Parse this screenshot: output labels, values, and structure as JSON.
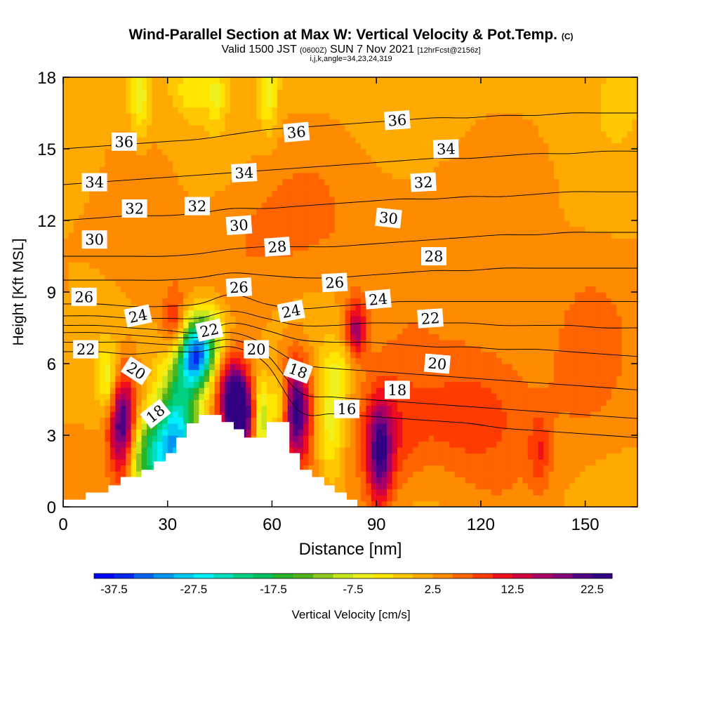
{
  "header": {
    "title_main": "Wind-Parallel Section at Max W: Vertical Velocity & Pot.Temp.",
    "title_mark": "(C)",
    "subtitle_a": "Valid 1500 JST",
    "subtitle_b": "(0600Z)",
    "subtitle_c": "SUN 7 Nov 2021",
    "subtitle_d": "[12hrFcst@2156z]",
    "subtitle_line3": "i,j,k,angle=34,23,24,319"
  },
  "chart_data": {
    "type": "heatmap",
    "xlabel": "Distance [nm]",
    "ylabel": "Height [Kft MSL]",
    "xlim": [
      0,
      165
    ],
    "ylim": [
      0,
      18
    ],
    "x_ticks": [
      0,
      30,
      60,
      90,
      120,
      150
    ],
    "y_ticks": [
      0,
      3,
      6,
      9,
      12,
      15,
      18
    ],
    "colorbar": {
      "label": "Vertical Velocity [cm/s]",
      "min": -40,
      "max": 25,
      "step": 2.5,
      "tick_labels": [
        "-37.5",
        "-27.5",
        "-17.5",
        "-7.5",
        "2.5",
        "12.5",
        "22.5"
      ],
      "colors": [
        "#0000ff",
        "#0028f0",
        "#0064f0",
        "#0096f0",
        "#00c8f5",
        "#00f0ff",
        "#00e0c0",
        "#00d080",
        "#00c060",
        "#28b428",
        "#50b41e",
        "#8cc81e",
        "#c8e61e",
        "#f0f01e",
        "#ffe600",
        "#ffc800",
        "#ffaa00",
        "#ff8c00",
        "#ff6400",
        "#ff3c00",
        "#f00f1e",
        "#d2003c",
        "#aa0064",
        "#820078",
        "#500082",
        "#320082"
      ]
    },
    "w_features": [
      {
        "x": 17,
        "y": 3.3,
        "w": 24,
        "rx": 4,
        "ry": 2.2
      },
      {
        "x": 26,
        "y": 2.1,
        "w": -22,
        "rx": 9,
        "ry": 1.7
      },
      {
        "x": 38,
        "y": 6.2,
        "w": -30,
        "rx": 5,
        "ry": 1.3
      },
      {
        "x": 33,
        "y": 3.6,
        "w": -24,
        "rx": 6,
        "ry": 2.5
      },
      {
        "x": 41,
        "y": 7.3,
        "w": -15,
        "rx": 6,
        "ry": 1.3
      },
      {
        "x": 13,
        "y": 5.3,
        "w": -10,
        "rx": 3,
        "ry": 1.5
      },
      {
        "x": 32,
        "y": 7.5,
        "w": 9,
        "rx": 3,
        "ry": 1.4
      },
      {
        "x": 48,
        "y": 4.6,
        "w": 15,
        "rx": 4,
        "ry": 1.9
      },
      {
        "x": 51,
        "y": 3.9,
        "w": 24,
        "rx": 3.5,
        "ry": 1.6
      },
      {
        "x": 57,
        "y": 3.6,
        "w": -12,
        "rx": 2,
        "ry": 1.8
      },
      {
        "x": 62,
        "y": 4.3,
        "w": -9,
        "rx": 3,
        "ry": 1.2
      },
      {
        "x": 67,
        "y": 4.1,
        "w": 22,
        "rx": 4,
        "ry": 2.1
      },
      {
        "x": 77,
        "y": 3.5,
        "w": -9,
        "rx": 4,
        "ry": 2.6
      },
      {
        "x": 80,
        "y": 5.8,
        "w": -5,
        "rx": 4,
        "ry": 1.2
      },
      {
        "x": 84,
        "y": 7.4,
        "w": 14,
        "rx": 3,
        "ry": 1.2
      },
      {
        "x": 91,
        "y": 2.2,
        "w": 16,
        "rx": 3.5,
        "ry": 2.2
      },
      {
        "x": 93,
        "y": 2.8,
        "w": 6,
        "rx": 9,
        "ry": 2.6
      },
      {
        "x": 112,
        "y": 3.6,
        "w": 5,
        "rx": 20,
        "ry": 2.4
      },
      {
        "x": 123,
        "y": 5.5,
        "w": 3,
        "rx": 14,
        "ry": 3.5
      },
      {
        "x": 60,
        "y": 11.5,
        "w": 3,
        "rx": 22,
        "ry": 2.6
      },
      {
        "x": 100,
        "y": 11.5,
        "w": 2,
        "rx": 20,
        "ry": 3.5
      },
      {
        "x": 22,
        "y": 11,
        "w": 1.5,
        "rx": 14,
        "ry": 3.5
      },
      {
        "x": 137,
        "y": 2.3,
        "w": 6,
        "rx": 3,
        "ry": 1.5
      },
      {
        "x": 150,
        "y": 6,
        "w": 3,
        "rx": 12,
        "ry": 4
      },
      {
        "x": 22,
        "y": 17.1,
        "w": -8,
        "rx": 3,
        "ry": 1.6
      },
      {
        "x": 37,
        "y": 17.5,
        "w": -6,
        "rx": 5,
        "ry": 1.0
      },
      {
        "x": 44,
        "y": 17.3,
        "w": -6,
        "rx": 2.5,
        "ry": 1.3
      },
      {
        "x": 59,
        "y": 17.3,
        "w": -8,
        "rx": 2.5,
        "ry": 1.6
      },
      {
        "x": 8,
        "y": 15,
        "w": -2,
        "rx": 8,
        "ry": 3
      },
      {
        "x": 160,
        "y": 17,
        "w": -3,
        "rx": 5,
        "ry": 1.5
      }
    ],
    "terrain": [
      [
        0,
        0.3
      ],
      [
        6.5,
        0.3
      ],
      [
        6.5,
        0.6
      ],
      [
        13,
        0.6
      ],
      [
        13,
        0.9
      ],
      [
        16.5,
        0.9
      ],
      [
        16.5,
        1.25
      ],
      [
        22.5,
        1.25
      ],
      [
        22.5,
        1.55
      ],
      [
        26,
        1.55
      ],
      [
        26,
        1.9
      ],
      [
        29.5,
        1.9
      ],
      [
        29.5,
        2.25
      ],
      [
        32.5,
        2.25
      ],
      [
        32.5,
        2.9
      ],
      [
        35.5,
        2.9
      ],
      [
        35.5,
        3.5
      ],
      [
        39,
        3.5
      ],
      [
        39,
        3.85
      ],
      [
        45.5,
        3.85
      ],
      [
        45.5,
        3.55
      ],
      [
        49,
        3.55
      ],
      [
        49,
        3.25
      ],
      [
        52,
        3.25
      ],
      [
        52,
        2.9
      ],
      [
        58.5,
        2.9
      ],
      [
        58.5,
        3.55
      ],
      [
        65,
        3.55
      ],
      [
        65,
        2.25
      ],
      [
        68,
        2.25
      ],
      [
        68,
        1.55
      ],
      [
        71.5,
        1.55
      ],
      [
        71.5,
        1.25
      ],
      [
        75,
        1.25
      ],
      [
        75,
        0.9
      ],
      [
        78,
        0.9
      ],
      [
        78,
        0.6
      ],
      [
        81.5,
        0.6
      ],
      [
        81.5,
        0.3
      ],
      [
        84.5,
        0.3
      ],
      [
        84.5,
        0
      ],
      [
        0,
        0
      ]
    ],
    "theta_contours": [
      {
        "level": 16,
        "values": [
          6.5,
          6.5,
          6.4,
          6.5,
          6.5,
          6.7,
          6.0,
          4.0,
          3.9,
          3.8,
          3.7,
          3.6,
          3.5,
          3.3,
          3.2,
          3.1,
          3.0,
          2.9
        ]
      },
      {
        "level": 18,
        "values": [
          6.9,
          6.9,
          6.9,
          6.8,
          6.8,
          7.0,
          6.4,
          4.8,
          4.6,
          4.5,
          4.4,
          4.3,
          4.2,
          4.1,
          4.0,
          3.9,
          3.8,
          3.7
        ]
      },
      {
        "level": 20,
        "values": [
          7.3,
          7.3,
          7.2,
          7.1,
          7.1,
          7.3,
          6.8,
          6.0,
          5.8,
          5.7,
          5.6,
          5.5,
          5.4,
          5.3,
          5.2,
          5.1,
          5.0,
          4.9
        ]
      },
      {
        "level": 22,
        "values": [
          7.6,
          7.6,
          7.5,
          7.4,
          7.3,
          7.7,
          7.4,
          7.0,
          6.9,
          6.9,
          6.8,
          6.7,
          6.7,
          6.6,
          6.6,
          6.5,
          6.4,
          6.3
        ]
      },
      {
        "level": 24,
        "values": [
          8.0,
          8.0,
          7.9,
          7.9,
          7.9,
          8.2,
          7.9,
          7.6,
          7.6,
          7.7,
          7.7,
          7.7,
          7.7,
          7.6,
          7.6,
          7.6,
          7.5,
          7.5
        ]
      },
      {
        "level": 26,
        "values": [
          8.5,
          8.5,
          8.4,
          8.4,
          8.5,
          8.9,
          8.5,
          8.3,
          8.4,
          8.5,
          8.6,
          8.6,
          8.6,
          8.6,
          8.6,
          8.6,
          8.6,
          8.6
        ]
      },
      {
        "level": 28,
        "values": [
          9.5,
          9.5,
          9.5,
          9.5,
          9.6,
          9.8,
          9.7,
          9.6,
          9.6,
          9.7,
          9.8,
          9.9,
          9.9,
          10.0,
          10.0,
          10.0,
          10.0,
          10.0
        ]
      },
      {
        "level": 30,
        "values": [
          10.5,
          10.5,
          10.5,
          10.5,
          10.6,
          10.8,
          10.9,
          10.9,
          10.9,
          11.0,
          11.1,
          11.2,
          11.3,
          11.4,
          11.4,
          11.5,
          11.5,
          11.5
        ]
      },
      {
        "level": 32,
        "values": [
          12.0,
          12.1,
          12.2,
          12.2,
          12.3,
          12.5,
          12.5,
          12.6,
          12.7,
          12.8,
          12.9,
          12.9,
          13.0,
          13.0,
          13.1,
          13.2,
          13.2,
          13.2
        ]
      },
      {
        "level": 34,
        "values": [
          13.5,
          13.6,
          13.7,
          13.8,
          13.9,
          14.0,
          14.1,
          14.2,
          14.3,
          14.4,
          14.5,
          14.6,
          14.6,
          14.7,
          14.8,
          14.8,
          14.9,
          14.9
        ]
      },
      {
        "level": 36,
        "values": [
          15.0,
          15.1,
          15.2,
          15.3,
          15.4,
          15.6,
          15.8,
          15.9,
          16.0,
          16.1,
          16.2,
          16.3,
          16.3,
          16.4,
          16.4,
          16.5,
          16.5,
          16.5
        ]
      }
    ],
    "contour_labels": [
      {
        "text": "36",
        "x": 17.5,
        "y": 15.3,
        "angle": 0
      },
      {
        "text": "36",
        "x": 67,
        "y": 15.7,
        "angle": -5
      },
      {
        "text": "36",
        "x": 96,
        "y": 16.2,
        "angle": -4
      },
      {
        "text": "34",
        "x": 9,
        "y": 13.6,
        "angle": 0
      },
      {
        "text": "34",
        "x": 52,
        "y": 14.0,
        "angle": -3
      },
      {
        "text": "34",
        "x": 110,
        "y": 15.0,
        "angle": -2
      },
      {
        "text": "32",
        "x": 20.5,
        "y": 12.5,
        "angle": 0
      },
      {
        "text": "32",
        "x": 38.5,
        "y": 12.6,
        "angle": 0
      },
      {
        "text": "32",
        "x": 103.5,
        "y": 13.6,
        "angle": -3
      },
      {
        "text": "30",
        "x": 9,
        "y": 11.2,
        "angle": 0
      },
      {
        "text": "30",
        "x": 50.5,
        "y": 11.8,
        "angle": -4
      },
      {
        "text": "30",
        "x": 93.5,
        "y": 12.1,
        "angle": 6
      },
      {
        "text": "28",
        "x": 61.5,
        "y": 10.9,
        "angle": -4
      },
      {
        "text": "28",
        "x": 106.5,
        "y": 10.5,
        "angle": 0
      },
      {
        "text": "26",
        "x": 6,
        "y": 8.8,
        "angle": 0
      },
      {
        "text": "26",
        "x": 50.5,
        "y": 9.2,
        "angle": -3
      },
      {
        "text": "26",
        "x": 78,
        "y": 9.4,
        "angle": -3
      },
      {
        "text": "24",
        "x": 21.5,
        "y": 8.0,
        "angle": -12
      },
      {
        "text": "24",
        "x": 65.5,
        "y": 8.2,
        "angle": -11
      },
      {
        "text": "24",
        "x": 90.5,
        "y": 8.7,
        "angle": -5
      },
      {
        "text": "22",
        "x": 6.5,
        "y": 6.6,
        "angle": 0
      },
      {
        "text": "22",
        "x": 42,
        "y": 7.4,
        "angle": -12
      },
      {
        "text": "22",
        "x": 105.5,
        "y": 7.9,
        "angle": -4
      },
      {
        "text": "20",
        "x": 21,
        "y": 5.7,
        "angle": 33
      },
      {
        "text": "20",
        "x": 55.5,
        "y": 6.6,
        "angle": 0
      },
      {
        "text": "20",
        "x": 107.5,
        "y": 6.0,
        "angle": 5
      },
      {
        "text": "18",
        "x": 26.5,
        "y": 3.9,
        "angle": -38
      },
      {
        "text": "18",
        "x": 67.5,
        "y": 5.7,
        "angle": 20
      },
      {
        "text": "18",
        "x": 96,
        "y": 4.9,
        "angle": 0
      },
      {
        "text": "16",
        "x": 81.5,
        "y": 4.1,
        "angle": 0
      }
    ]
  }
}
